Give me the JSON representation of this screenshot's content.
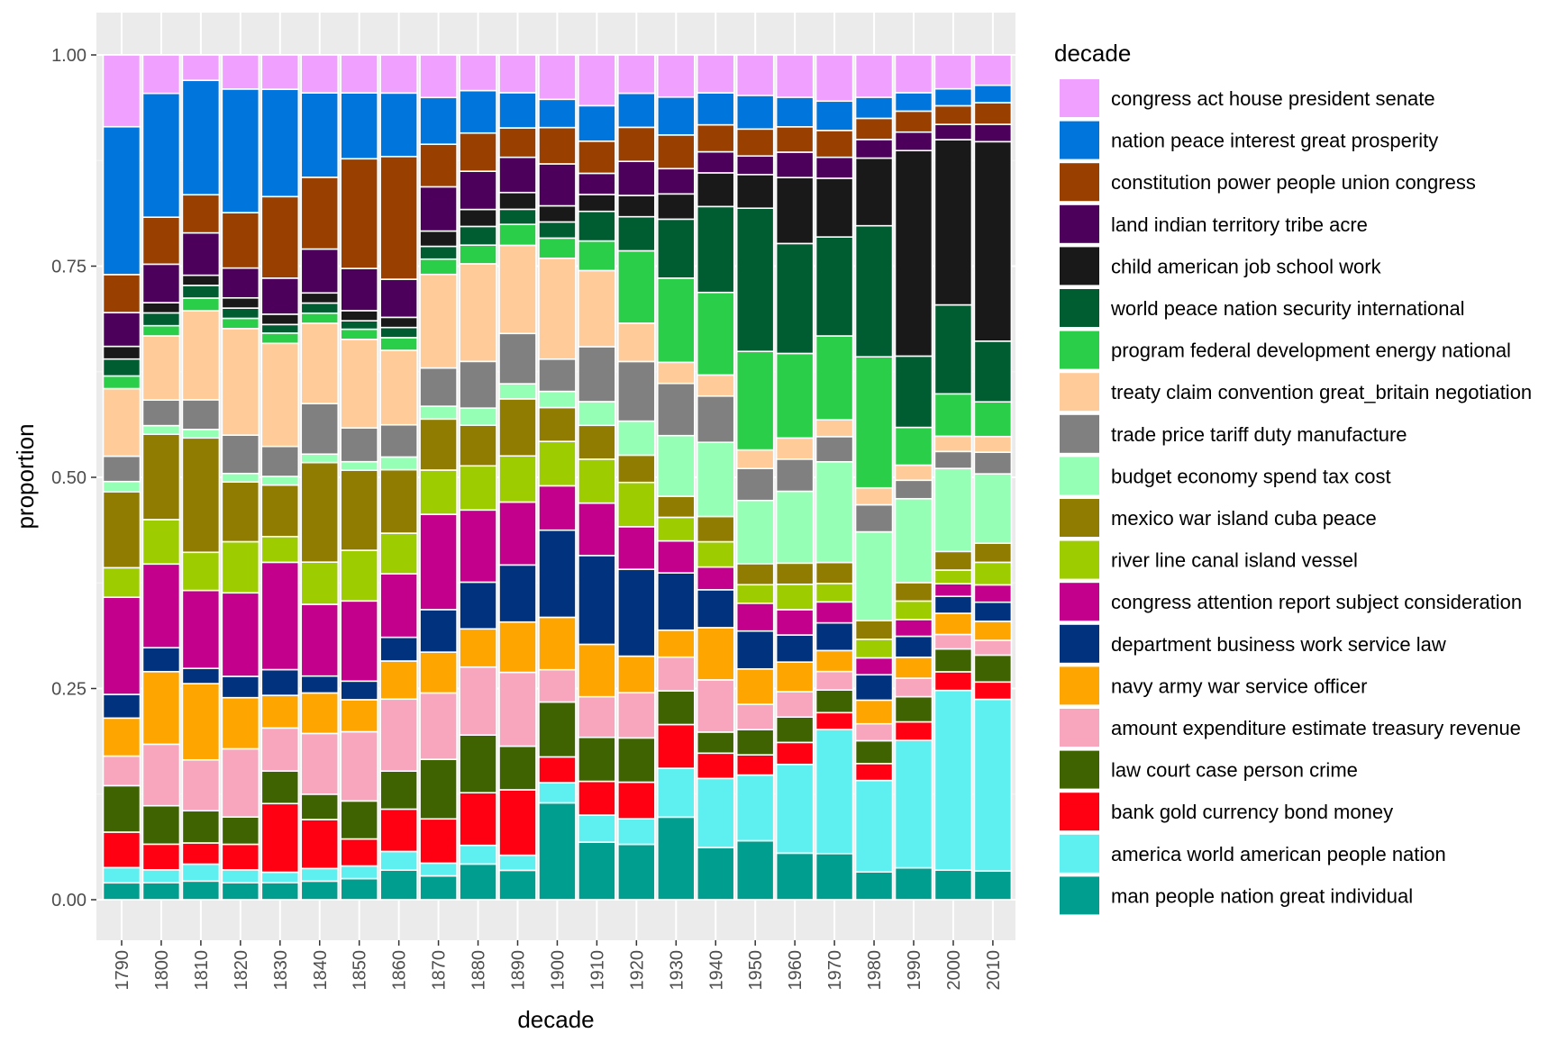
{
  "chart_data": {
    "type": "bar",
    "stacked": true,
    "xlabel": "decade",
    "ylabel": "proportion",
    "legend_title": "decade",
    "legend_position": "right",
    "ylim": [
      0,
      1
    ],
    "grid": true,
    "y_ticks": [
      "0.00",
      "0.25",
      "0.50",
      "0.75",
      "1.00"
    ],
    "categories": [
      "1790",
      "1800",
      "1810",
      "1820",
      "1830",
      "1840",
      "1850",
      "1860",
      "1870",
      "1880",
      "1890",
      "1900",
      "1910",
      "1920",
      "1930",
      "1940",
      "1950",
      "1960",
      "1970",
      "1980",
      "1990",
      "2000",
      "2010"
    ],
    "series": [
      {
        "name": "man people nation great individual",
        "color": "#009E8F",
        "values": [
          0.02,
          0.02,
          0.022,
          0.02,
          0.02,
          0.022,
          0.025,
          0.035,
          0.028,
          0.042,
          0.035,
          0.12,
          0.068,
          0.065,
          0.098,
          0.062,
          0.07,
          0.055,
          0.055,
          0.033,
          0.038,
          0.035,
          0.033
        ]
      },
      {
        "name": "america world american people nation",
        "color": "#5EF0F0",
        "values": [
          0.018,
          0.015,
          0.02,
          0.015,
          0.012,
          0.015,
          0.015,
          0.022,
          0.015,
          0.022,
          0.018,
          0.025,
          0.032,
          0.03,
          0.058,
          0.082,
          0.078,
          0.105,
          0.148,
          0.108,
          0.152,
          0.212,
          0.198
        ]
      },
      {
        "name": "bank gold currency bond money",
        "color": "#FF0012",
        "values": [
          0.042,
          0.03,
          0.025,
          0.03,
          0.08,
          0.058,
          0.032,
          0.05,
          0.052,
          0.062,
          0.078,
          0.032,
          0.04,
          0.043,
          0.052,
          0.03,
          0.024,
          0.026,
          0.02,
          0.02,
          0.022,
          0.022,
          0.02
        ]
      },
      {
        "name": "law court case person crime",
        "color": "#3F6300",
        "values": [
          0.055,
          0.045,
          0.038,
          0.032,
          0.038,
          0.03,
          0.045,
          0.045,
          0.07,
          0.068,
          0.052,
          0.068,
          0.052,
          0.052,
          0.04,
          0.025,
          0.03,
          0.03,
          0.027,
          0.027,
          0.03,
          0.027,
          0.031
        ]
      },
      {
        "name": "amount expenditure estimate treasury revenue",
        "color": "#F8A5BE",
        "values": [
          0.035,
          0.072,
          0.06,
          0.08,
          0.05,
          0.072,
          0.082,
          0.085,
          0.078,
          0.08,
          0.088,
          0.04,
          0.048,
          0.053,
          0.04,
          0.062,
          0.03,
          0.03,
          0.022,
          0.02,
          0.022,
          0.017,
          0.017
        ]
      },
      {
        "name": "navy army war service officer",
        "color": "#FFA500",
        "values": [
          0.045,
          0.085,
          0.09,
          0.06,
          0.038,
          0.048,
          0.038,
          0.045,
          0.048,
          0.045,
          0.06,
          0.065,
          0.062,
          0.043,
          0.032,
          0.062,
          0.042,
          0.035,
          0.025,
          0.028,
          0.025,
          0.025,
          0.022
        ]
      },
      {
        "name": "department business work service law",
        "color": "#00327E",
        "values": [
          0.028,
          0.028,
          0.018,
          0.025,
          0.03,
          0.02,
          0.022,
          0.028,
          0.05,
          0.055,
          0.068,
          0.108,
          0.105,
          0.102,
          0.068,
          0.045,
          0.045,
          0.032,
          0.033,
          0.03,
          0.025,
          0.02,
          0.022
        ]
      },
      {
        "name": "congress attention report subject consideration",
        "color": "#C3008B",
        "values": [
          0.115,
          0.098,
          0.092,
          0.098,
          0.125,
          0.085,
          0.095,
          0.075,
          0.112,
          0.085,
          0.075,
          0.055,
          0.062,
          0.05,
          0.038,
          0.027,
          0.033,
          0.03,
          0.025,
          0.02,
          0.02,
          0.015,
          0.02
        ]
      },
      {
        "name": "river line canal island vessel",
        "color": "#9DCC00",
        "values": [
          0.035,
          0.052,
          0.045,
          0.06,
          0.03,
          0.05,
          0.06,
          0.048,
          0.052,
          0.052,
          0.055,
          0.055,
          0.052,
          0.052,
          0.028,
          0.03,
          0.022,
          0.03,
          0.022,
          0.022,
          0.022,
          0.016,
          0.026
        ]
      },
      {
        "name": "mexico war island cuba peace",
        "color": "#8F7C00",
        "values": [
          0.09,
          0.1,
          0.135,
          0.07,
          0.06,
          0.118,
          0.095,
          0.075,
          0.06,
          0.048,
          0.068,
          0.042,
          0.04,
          0.032,
          0.025,
          0.03,
          0.025,
          0.025,
          0.025,
          0.022,
          0.022,
          0.022,
          0.022
        ]
      },
      {
        "name": "budget economy spend tax cost",
        "color": "#94FFB5",
        "values": [
          0.012,
          0.01,
          0.01,
          0.01,
          0.01,
          0.01,
          0.01,
          0.015,
          0.015,
          0.02,
          0.018,
          0.02,
          0.028,
          0.04,
          0.072,
          0.088,
          0.075,
          0.085,
          0.12,
          0.105,
          0.1,
          0.098,
          0.08
        ]
      },
      {
        "name": "trade price tariff duty manufacture",
        "color": "#808080",
        "values": [
          0.03,
          0.03,
          0.035,
          0.045,
          0.035,
          0.06,
          0.04,
          0.038,
          0.045,
          0.055,
          0.06,
          0.04,
          0.065,
          0.07,
          0.062,
          0.055,
          0.038,
          0.038,
          0.03,
          0.032,
          0.022,
          0.02,
          0.025
        ]
      },
      {
        "name": "treaty claim convention great_britain negotiation",
        "color": "#FFCC99",
        "values": [
          0.08,
          0.075,
          0.105,
          0.125,
          0.12,
          0.095,
          0.105,
          0.088,
          0.11,
          0.115,
          0.105,
          0.125,
          0.09,
          0.045,
          0.025,
          0.025,
          0.022,
          0.025,
          0.02,
          0.02,
          0.018,
          0.018,
          0.018
        ]
      },
      {
        "name": "program federal development energy national",
        "color": "#2BCE48",
        "values": [
          0.015,
          0.012,
          0.015,
          0.012,
          0.012,
          0.012,
          0.012,
          0.015,
          0.018,
          0.022,
          0.025,
          0.025,
          0.035,
          0.085,
          0.1,
          0.098,
          0.117,
          0.1,
          0.1,
          0.155,
          0.045,
          0.05,
          0.04
        ]
      },
      {
        "name": "world peace nation security international",
        "color": "#005C31",
        "values": [
          0.02,
          0.015,
          0.015,
          0.012,
          0.01,
          0.012,
          0.01,
          0.012,
          0.015,
          0.022,
          0.018,
          0.02,
          0.035,
          0.04,
          0.07,
          0.102,
          0.17,
          0.13,
          0.118,
          0.155,
          0.085,
          0.105,
          0.07
        ]
      },
      {
        "name": "child american job school work",
        "color": "#191919",
        "values": [
          0.015,
          0.012,
          0.012,
          0.012,
          0.012,
          0.012,
          0.012,
          0.012,
          0.018,
          0.02,
          0.02,
          0.02,
          0.02,
          0.025,
          0.03,
          0.04,
          0.04,
          0.078,
          0.07,
          0.08,
          0.245,
          0.195,
          0.23
        ]
      },
      {
        "name": "land indian territory tribe acre",
        "color": "#4C005C",
        "values": [
          0.04,
          0.045,
          0.05,
          0.035,
          0.042,
          0.052,
          0.05,
          0.045,
          0.052,
          0.045,
          0.042,
          0.052,
          0.025,
          0.04,
          0.03,
          0.025,
          0.022,
          0.03,
          0.025,
          0.022,
          0.022,
          0.018,
          0.02
        ]
      },
      {
        "name": "constitution power people union congress",
        "color": "#993F00",
        "values": [
          0.045,
          0.055,
          0.045,
          0.065,
          0.095,
          0.085,
          0.13,
          0.145,
          0.05,
          0.045,
          0.035,
          0.045,
          0.038,
          0.04,
          0.04,
          0.032,
          0.032,
          0.03,
          0.032,
          0.025,
          0.025,
          0.022,
          0.025
        ]
      },
      {
        "name": "nation peace interest great prosperity",
        "color": "#0075DC",
        "values": [
          0.175,
          0.145,
          0.135,
          0.145,
          0.125,
          0.1,
          0.078,
          0.075,
          0.055,
          0.05,
          0.042,
          0.035,
          0.042,
          0.04,
          0.045,
          0.038,
          0.04,
          0.035,
          0.035,
          0.025,
          0.022,
          0.02,
          0.02
        ]
      },
      {
        "name": "congress act house president senate",
        "color": "#F0A0FF",
        "values": [
          0.085,
          0.045,
          0.03,
          0.04,
          0.04,
          0.045,
          0.045,
          0.045,
          0.05,
          0.042,
          0.045,
          0.055,
          0.06,
          0.045,
          0.05,
          0.045,
          0.048,
          0.05,
          0.055,
          0.05,
          0.045,
          0.04,
          0.035
        ]
      }
    ]
  }
}
